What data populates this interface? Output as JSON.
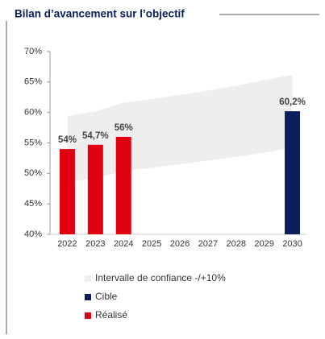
{
  "chart_data": {
    "type": "bar",
    "title": "Bilan d’avancement sur l’objectif",
    "categories": [
      "2022",
      "2023",
      "2024",
      "2025",
      "2026",
      "2027",
      "2028",
      "2029",
      "2030"
    ],
    "band": {
      "name": "Intervalle de confiance -/+10%",
      "color": "#eeeeee",
      "upper": [
        59.4,
        60.2,
        61.6,
        62.2,
        62.9,
        63.6,
        64.4,
        65.3,
        66.2
      ],
      "lower": [
        48.6,
        49.2,
        50.4,
        50.9,
        51.5,
        52.1,
        52.7,
        53.4,
        54.2
      ]
    },
    "series": [
      {
        "name": "Cible",
        "color": "#0b1f5c",
        "values": [
          null,
          null,
          null,
          null,
          null,
          null,
          null,
          null,
          60.2
        ],
        "value_labels": [
          null,
          null,
          null,
          null,
          null,
          null,
          null,
          null,
          "60,2%"
        ]
      },
      {
        "name": "Réalisé",
        "color": "#e1000f",
        "values": [
          54,
          54.7,
          56,
          null,
          null,
          null,
          null,
          null,
          null
        ],
        "value_labels": [
          "54%",
          "54,7%",
          "56%",
          null,
          null,
          null,
          null,
          null,
          null
        ]
      }
    ],
    "ylim": [
      40,
      70
    ],
    "yticks": [
      {
        "value": 40,
        "label": "40%"
      },
      {
        "value": 45,
        "label": "45%"
      },
      {
        "value": 50,
        "label": "50%"
      },
      {
        "value": 55,
        "label": "55%"
      },
      {
        "value": 60,
        "label": "60%"
      },
      {
        "value": 65,
        "label": "65%"
      },
      {
        "value": 70,
        "label": "70%"
      }
    ]
  }
}
